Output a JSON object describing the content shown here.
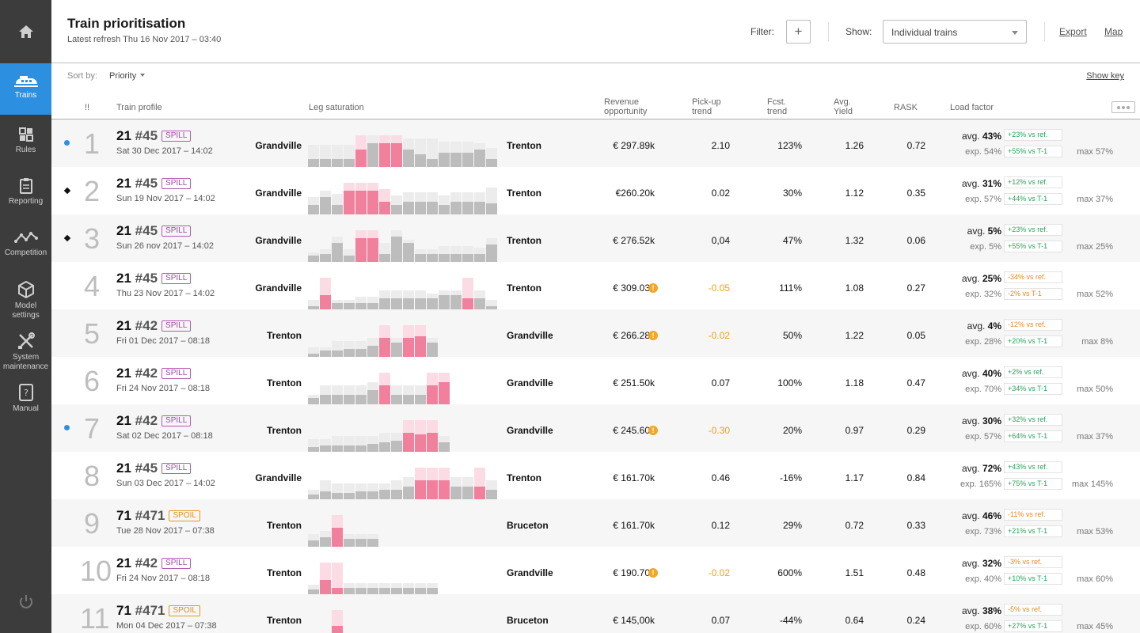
{
  "nav": {
    "home_icon": "home-icon",
    "items": [
      {
        "label": "Trains",
        "icon": "train-icon",
        "active": true
      },
      {
        "label": "Rules",
        "icon": "rules-icon",
        "active": false
      },
      {
        "label": "Reporting",
        "icon": "clipboard-icon",
        "active": false
      },
      {
        "label": "Competition",
        "icon": "trend-line-icon",
        "active": false
      },
      {
        "label": "Model\nsettings",
        "icon": "cube-icon",
        "active": false
      },
      {
        "label": "System\nmaintenance",
        "icon": "tools-icon",
        "active": false
      },
      {
        "label": "Manual",
        "icon": "manual-icon",
        "active": false
      }
    ],
    "power_icon": "power-icon"
  },
  "header": {
    "title": "Train prioritisation",
    "refresh": "Latest refresh Thu 16 Nov 2017 – 03:40",
    "filter_label": "Filter:",
    "filter_button": "+",
    "show_label": "Show:",
    "show_value": "Individual trains",
    "export": "Export",
    "map": "Map"
  },
  "toolbar": {
    "sort_label": "Sort by:",
    "sort_value": "Priority",
    "show_key": "Show key"
  },
  "columns": {
    "priority": "!!",
    "profile": "Train profile",
    "saturation": "Leg saturation",
    "revenue": "Revenue\nopportunity",
    "pickup": "Pick-up\ntrend",
    "fcst": "Fcst.\ntrend",
    "yield": "Avg.\nYield",
    "rask": "RASK",
    "load": "Load factor"
  },
  "colors": {
    "accent": "#2d8fe0",
    "bar_grey": "#bdbdbd",
    "bar_grey_light": "#ececec",
    "bar_pink": "#f0809c",
    "bar_pink_light": "#fbdce4",
    "positive": "#27a35a",
    "negative": "#e8891a",
    "warning": "#f5a623"
  },
  "rows": [
    {
      "rank": "1",
      "marker": "dot",
      "train": "21",
      "code": "#45",
      "tag": "SPILL",
      "tag_type": "spill",
      "date": "Sat 30 Dec 2017 – 14:02",
      "origin": "Grandville",
      "destination": "Trenton",
      "revenue": "€ 297.89k",
      "pickup": "2.10",
      "pickup_warn": false,
      "fcst": "123%",
      "yield": "1.26",
      "rask": "0.72",
      "lf_avg_label": "avg. ",
      "lf_avg": "43%",
      "lf_ref": "+23% vs ref.",
      "lf_ref_type": "pos",
      "lf_exp": "exp. 54%",
      "lf_t1": "+55% vs T-1",
      "lf_t1_type": "pos",
      "lf_max": "max 57%",
      "legs": [
        [
          0.25,
          0.7,
          0
        ],
        [
          0.25,
          0.7,
          0
        ],
        [
          0.25,
          0.7,
          0
        ],
        [
          0.25,
          0.7,
          0
        ],
        [
          0.55,
          1,
          1
        ],
        [
          0.75,
          1,
          0
        ],
        [
          0.75,
          1,
          1
        ],
        [
          0.75,
          1,
          1
        ],
        [
          0.55,
          0.9,
          0
        ],
        [
          0.4,
          0.9,
          0
        ],
        [
          0.25,
          0.9,
          0
        ],
        [
          0.45,
          0.8,
          0
        ],
        [
          0.45,
          0.8,
          0
        ],
        [
          0.45,
          0.8,
          0
        ],
        [
          0.55,
          0.75,
          0
        ],
        [
          0.25,
          0.6,
          0
        ]
      ]
    },
    {
      "rank": "2",
      "marker": "diamond",
      "train": "21",
      "code": "#45",
      "tag": "SPILL",
      "tag_type": "spill",
      "date": "Sun 19 Nov 2017 – 14:02",
      "origin": "Grandville",
      "destination": "Trenton",
      "revenue": "€260.20k",
      "pickup": "0.02",
      "pickup_warn": false,
      "fcst": "30%",
      "yield": "1.12",
      "rask": "0.35",
      "lf_avg_label": "avg. ",
      "lf_avg": "31%",
      "lf_ref": "+12% vs ref.",
      "lf_ref_type": "pos",
      "lf_exp": "exp. 57%",
      "lf_t1": "+44% vs T-1",
      "lf_t1_type": "pos",
      "lf_max": "max 37%",
      "legs": [
        [
          0.3,
          0.55,
          0
        ],
        [
          0.55,
          0.75,
          0
        ],
        [
          0.3,
          0.65,
          0
        ],
        [
          0.75,
          1,
          1
        ],
        [
          0.75,
          1,
          1
        ],
        [
          0.75,
          1,
          1
        ],
        [
          0.4,
          0.8,
          1
        ],
        [
          0.3,
          0.6,
          0
        ],
        [
          0.4,
          0.7,
          0
        ],
        [
          0.4,
          0.7,
          0
        ],
        [
          0.4,
          0.7,
          0
        ],
        [
          0.3,
          0.6,
          0
        ],
        [
          0.4,
          0.7,
          0
        ],
        [
          0.4,
          0.7,
          0
        ],
        [
          0.4,
          0.7,
          0
        ],
        [
          0.35,
          0.85,
          0
        ]
      ]
    },
    {
      "rank": "3",
      "marker": "diamond",
      "train": "21",
      "code": "#45",
      "tag": "SPILL",
      "tag_type": "spill",
      "date": "Sun 26 nov 2017 – 14:02",
      "origin": "Grandville",
      "destination": "Trenton",
      "revenue": "€ 276.52k",
      "pickup": "0,04",
      "pickup_warn": false,
      "fcst": "47%",
      "yield": "1.32",
      "rask": "0.06",
      "lf_avg_label": "avg. ",
      "lf_avg": "5%",
      "lf_ref": "+23% vs ref.",
      "lf_ref_type": "pos",
      "lf_exp": "exp. 5%",
      "lf_t1": "+55% vs T-1",
      "lf_t1_type": "pos",
      "lf_max": "max 25%",
      "legs": [
        [
          0.2,
          0.3,
          0
        ],
        [
          0.25,
          0.4,
          0
        ],
        [
          0.6,
          0.8,
          0
        ],
        [
          0.2,
          0.4,
          0
        ],
        [
          0.75,
          1,
          1
        ],
        [
          0.75,
          1,
          1
        ],
        [
          0.25,
          0.6,
          0
        ],
        [
          0.8,
          1,
          0
        ],
        [
          0.6,
          0.7,
          0
        ],
        [
          0.25,
          0.4,
          0
        ],
        [
          0.25,
          0.4,
          0
        ],
        [
          0.25,
          0.5,
          0
        ],
        [
          0.25,
          0.5,
          0
        ],
        [
          0.25,
          0.5,
          0
        ],
        [
          0.25,
          0.45,
          0
        ],
        [
          0.55,
          0.75,
          0
        ]
      ]
    },
    {
      "rank": "4",
      "marker": "none",
      "train": "21",
      "code": "#45",
      "tag": "SPILL",
      "tag_type": "spill",
      "date": "Thu 23 Nov 2017 – 14:02",
      "origin": "Grandville",
      "destination": "Trenton",
      "revenue": "€ 309.03k",
      "pickup": "-0.05",
      "pickup_warn": true,
      "fcst": "111%",
      "yield": "1.08",
      "rask": "0.27",
      "lf_avg_label": "avg. ",
      "lf_avg": "25%",
      "lf_ref": "-34% vs ref.",
      "lf_ref_type": "neg",
      "lf_exp": "exp. 32%",
      "lf_t1": "-2% vs T-1",
      "lf_t1_type": "neg",
      "lf_max": "max 52%",
      "legs": [
        [
          0.1,
          0.3,
          0
        ],
        [
          0.45,
          1,
          1
        ],
        [
          0.2,
          0.3,
          0
        ],
        [
          0.2,
          0.3,
          0
        ],
        [
          0.2,
          0.4,
          0
        ],
        [
          0.2,
          0.4,
          0
        ],
        [
          0.35,
          0.6,
          0
        ],
        [
          0.35,
          0.6,
          0
        ],
        [
          0.35,
          0.6,
          0
        ],
        [
          0.35,
          0.6,
          0
        ],
        [
          0.35,
          0.5,
          0
        ],
        [
          0.45,
          0.6,
          0
        ],
        [
          0.45,
          0.6,
          0
        ],
        [
          0.35,
          1,
          1
        ],
        [
          0.35,
          0.6,
          0
        ],
        [
          0.1,
          0.3,
          0
        ]
      ]
    },
    {
      "rank": "5",
      "marker": "none",
      "train": "21",
      "code": "#42",
      "tag": "SPILL",
      "tag_type": "spill",
      "date": "Fri 01 Dec 2017 – 08:18",
      "origin": "Trenton",
      "destination": "Grandville",
      "revenue": "€ 266.28k",
      "pickup": "-0.02",
      "pickup_warn": true,
      "fcst": "50%",
      "yield": "1.22",
      "rask": "0.05",
      "lf_avg_label": "avg. ",
      "lf_avg": "4%",
      "lf_ref": "-12% vs ref.",
      "lf_ref_type": "neg",
      "lf_exp": "exp. 28%",
      "lf_t1": "+20% vs T-1",
      "lf_t1_type": "pos",
      "lf_max": "max 8%",
      "legs": [
        [
          0.1,
          0.3,
          0
        ],
        [
          0.2,
          0.3,
          0
        ],
        [
          0.2,
          0.5,
          0
        ],
        [
          0.25,
          0.5,
          0
        ],
        [
          0.25,
          0.5,
          0
        ],
        [
          0.35,
          0.6,
          0
        ],
        [
          0.6,
          1,
          1
        ],
        [
          0.45,
          0.6,
          0
        ],
        [
          0.6,
          1,
          1
        ],
        [
          0.65,
          1,
          1
        ],
        [
          0.45,
          0.6,
          0
        ]
      ]
    },
    {
      "rank": "6",
      "marker": "none",
      "train": "21",
      "code": "#42",
      "tag": "SPILL",
      "tag_type": "spill",
      "date": "Fri 24 Nov 2017 – 08:18",
      "origin": "Trenton",
      "destination": "Grandville",
      "revenue": "€ 251.50k",
      "pickup": "0.07",
      "pickup_warn": false,
      "fcst": "100%",
      "yield": "1.18",
      "rask": "0.47",
      "lf_avg_label": "avg. ",
      "lf_avg": "40%",
      "lf_ref": "+2% vs ref.",
      "lf_ref_type": "pos",
      "lf_exp": "exp. 70%",
      "lf_t1": "+34% vs T-1",
      "lf_t1_type": "pos",
      "lf_max": "max 50%",
      "legs": [
        [
          0.2,
          0.3,
          0
        ],
        [
          0.3,
          0.6,
          0
        ],
        [
          0.3,
          0.6,
          0
        ],
        [
          0.3,
          0.6,
          0
        ],
        [
          0.3,
          0.6,
          0
        ],
        [
          0.45,
          0.7,
          0
        ],
        [
          0.6,
          1,
          1
        ],
        [
          0.3,
          0.6,
          0
        ],
        [
          0.3,
          0.6,
          0
        ],
        [
          0.3,
          0.6,
          0
        ],
        [
          0.6,
          1,
          1
        ],
        [
          0.7,
          1,
          1
        ]
      ]
    },
    {
      "rank": "7",
      "marker": "dot",
      "train": "21",
      "code": "#42",
      "tag": "SPILL",
      "tag_type": "spill",
      "date": "Sat 02 Dec 2017 – 08:18",
      "origin": "Trenton",
      "destination": "Grandville",
      "revenue": "€ 245.60k",
      "pickup": "-0.30",
      "pickup_warn": true,
      "fcst": "20%",
      "yield": "0.97",
      "rask": "0.29",
      "lf_avg_label": "avg. ",
      "lf_avg": "30%",
      "lf_ref": "+32% vs ref.",
      "lf_ref_type": "pos",
      "lf_exp": "exp. 57%",
      "lf_t1": "+64% vs T-1",
      "lf_t1_type": "pos",
      "lf_max": "max 37%",
      "legs": [
        [
          0.15,
          0.4,
          0
        ],
        [
          0.2,
          0.4,
          0
        ],
        [
          0.2,
          0.5,
          0
        ],
        [
          0.2,
          0.5,
          0
        ],
        [
          0.2,
          0.5,
          0
        ],
        [
          0.25,
          0.5,
          0
        ],
        [
          0.3,
          0.6,
          0
        ],
        [
          0.35,
          0.6,
          0
        ],
        [
          0.6,
          1,
          1
        ],
        [
          0.55,
          1,
          1
        ],
        [
          0.6,
          1,
          1
        ],
        [
          0.3,
          0.5,
          0
        ]
      ]
    },
    {
      "rank": "8",
      "marker": "none",
      "train": "21",
      "code": "#45",
      "tag": "SPILL",
      "tag_type": "spill",
      "date": "Sun 03 Dec 2017 – 14:02",
      "origin": "Grandville",
      "destination": "Trenton",
      "revenue": "€ 161.70k",
      "pickup": "0.46",
      "pickup_warn": false,
      "fcst": "-16%",
      "yield": "1.17",
      "rask": "0.84",
      "lf_avg_label": "avg. ",
      "lf_avg": "72%",
      "lf_ref": "+43% vs ref.",
      "lf_ref_type": "pos",
      "lf_exp": "exp. 165%",
      "lf_t1": "+75% vs T-1",
      "lf_t1_type": "pos",
      "lf_max": "max 145%",
      "legs": [
        [
          0.15,
          0.3,
          0
        ],
        [
          0.25,
          0.6,
          0
        ],
        [
          0.2,
          0.5,
          0
        ],
        [
          0.2,
          0.5,
          0
        ],
        [
          0.25,
          0.5,
          0
        ],
        [
          0.25,
          0.5,
          0
        ],
        [
          0.3,
          0.5,
          0
        ],
        [
          0.3,
          0.6,
          0
        ],
        [
          0.4,
          0.7,
          0
        ],
        [
          0.6,
          1,
          1
        ],
        [
          0.6,
          1,
          1
        ],
        [
          0.6,
          1,
          1
        ],
        [
          0.4,
          0.7,
          0
        ],
        [
          0.4,
          0.7,
          0
        ],
        [
          0.4,
          1,
          1
        ],
        [
          0.3,
          0.6,
          0
        ]
      ]
    },
    {
      "rank": "9",
      "marker": "none",
      "train": "71",
      "code": "#471",
      "tag": "SPOIL",
      "tag_type": "spoil",
      "date": "Tue 28 Nov 2017 – 07:38",
      "origin": "Trenton",
      "destination": "Bruceton",
      "revenue": "€ 161.70k",
      "pickup": "0.12",
      "pickup_warn": false,
      "fcst": "29%",
      "yield": "0.72",
      "rask": "0.33",
      "lf_avg_label": "avg. ",
      "lf_avg": "46%",
      "lf_ref": "-11% vs ref.",
      "lf_ref_type": "neg",
      "lf_exp": "exp. 73%",
      "lf_t1": "+21% vs T-1",
      "lf_t1_type": "pos",
      "lf_max": "max 53%",
      "legs": [
        [
          0.2,
          0.4,
          0
        ],
        [
          0.3,
          0.5,
          0
        ],
        [
          0.6,
          1,
          1
        ],
        [
          0.25,
          0.4,
          0
        ],
        [
          0.25,
          0.4,
          0
        ],
        [
          0.25,
          0.4,
          0
        ]
      ]
    },
    {
      "rank": "10",
      "marker": "none",
      "train": "21",
      "code": "#42",
      "tag": "SPILL",
      "tag_type": "spill",
      "date": "Fri 24 Nov 2017 – 08:18",
      "origin": "Trenton",
      "destination": "Grandville",
      "revenue": "€ 190.70k",
      "pickup": "-0.02",
      "pickup_warn": true,
      "fcst": "600%",
      "yield": "1.51",
      "rask": "0.48",
      "lf_avg_label": "avg. ",
      "lf_avg": "32%",
      "lf_ref": "-3% vs ref.",
      "lf_ref_type": "neg",
      "lf_exp": "exp. 40%",
      "lf_t1": "+10% vs T-1",
      "lf_t1_type": "pos",
      "lf_max": "max 60%",
      "legs": [
        [
          0.15,
          0.3,
          0
        ],
        [
          0.45,
          1,
          1
        ],
        [
          0.2,
          1,
          1
        ],
        [
          0.2,
          0.35,
          0
        ],
        [
          0.2,
          0.35,
          0
        ],
        [
          0.2,
          0.35,
          0
        ],
        [
          0.2,
          0.35,
          0
        ],
        [
          0.2,
          0.35,
          0
        ],
        [
          0.2,
          0.35,
          0
        ],
        [
          0.2,
          0.35,
          0
        ],
        [
          0.2,
          0.35,
          0
        ]
      ]
    },
    {
      "rank": "11",
      "marker": "none",
      "train": "71",
      "code": "#471",
      "tag": "SPOIL",
      "tag_type": "spoil",
      "date": "Mon 04 Dec 2017 – 07:38",
      "origin": "Trenton",
      "destination": "Bruceton",
      "revenue": "€ 145,00k",
      "pickup": "0.07",
      "pickup_warn": false,
      "fcst": "-44%",
      "yield": "0.64",
      "rask": "0.24",
      "lf_avg_label": "avg. ",
      "lf_avg": "38%",
      "lf_ref": "-5% vs ref.",
      "lf_ref_type": "neg",
      "lf_exp": "exp. 60%",
      "lf_t1": "+27% vs T-1",
      "lf_t1_type": "pos",
      "lf_max": "max 45%",
      "legs": [
        [
          0.1,
          0.2,
          0
        ],
        [
          0.1,
          0.2,
          0
        ],
        [
          0.5,
          1,
          1
        ],
        [
          0.1,
          0.2,
          0
        ],
        [
          0.1,
          0.2,
          0
        ],
        [
          0.1,
          0.2,
          0
        ]
      ]
    }
  ]
}
